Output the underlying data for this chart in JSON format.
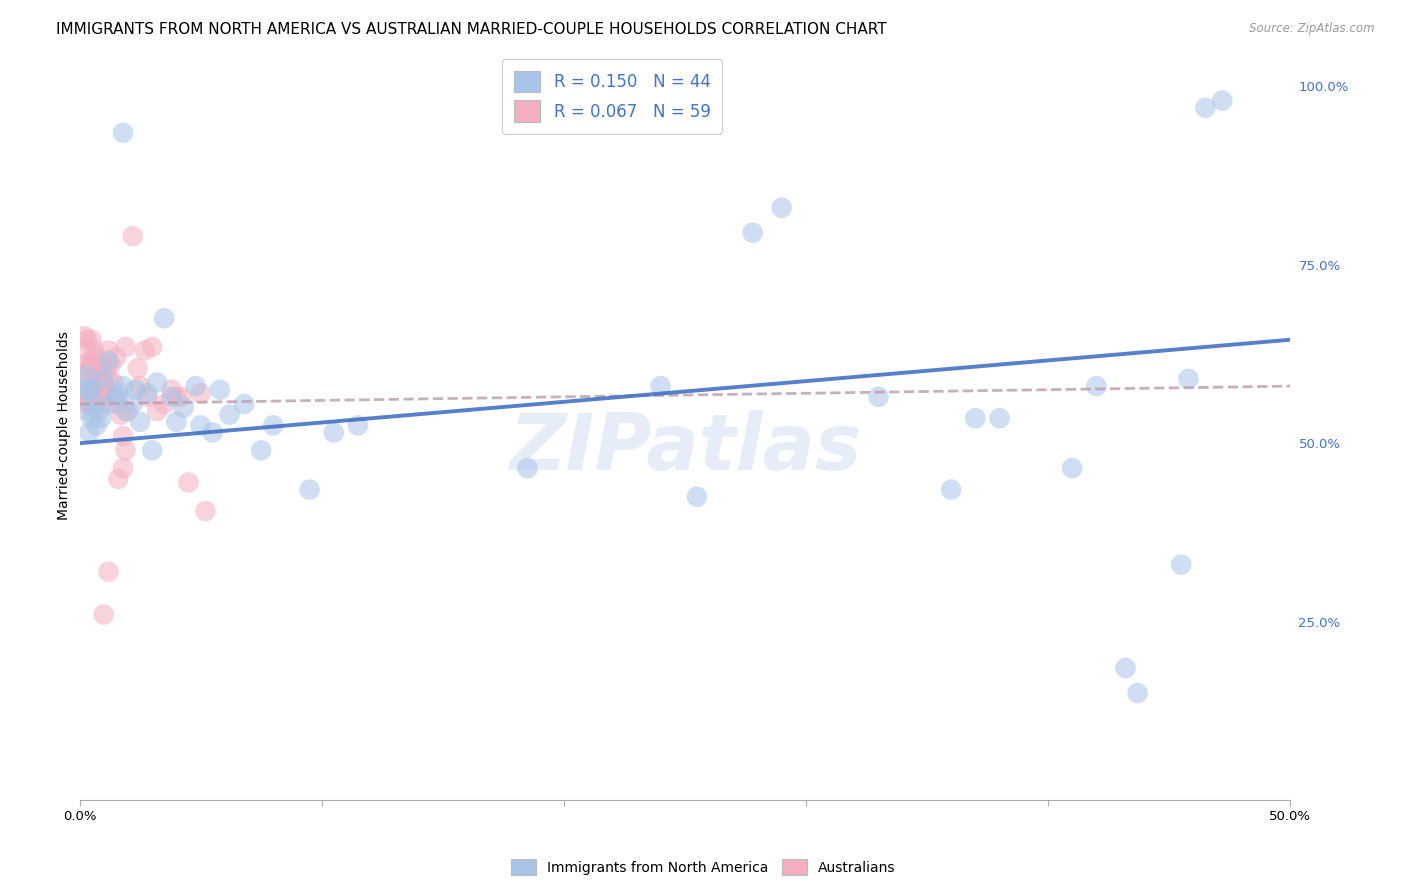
{
  "title": "IMMIGRANTS FROM NORTH AMERICA VS AUSTRALIAN MARRIED-COUPLE HOUSEHOLDS CORRELATION CHART",
  "source": "Source: ZipAtlas.com",
  "ylabel": "Married-couple Households",
  "xlim": [
    0.0,
    0.5
  ],
  "ylim": [
    0.0,
    1.05
  ],
  "x_ticks": [
    0.0,
    0.1,
    0.2,
    0.3,
    0.4,
    0.5
  ],
  "x_tick_labels": [
    "0.0%",
    "",
    "",
    "",
    "",
    "50.0%"
  ],
  "y_ticks_right": [
    0.25,
    0.5,
    0.75,
    1.0
  ],
  "y_tick_labels_right": [
    "25.0%",
    "50.0%",
    "75.0%",
    "100.0%"
  ],
  "blue_color": "#a8c4e8",
  "pink_color": "#f4afc0",
  "line_blue": "#4472c4",
  "line_pink_color": "#d08090",
  "watermark": "ZIPatlas",
  "blue_scatter": [
    [
      0.002,
      0.575
    ],
    [
      0.003,
      0.595
    ],
    [
      0.003,
      0.545
    ],
    [
      0.004,
      0.575
    ],
    [
      0.004,
      0.515
    ],
    [
      0.005,
      0.575
    ],
    [
      0.005,
      0.535
    ],
    [
      0.006,
      0.555
    ],
    [
      0.007,
      0.525
    ],
    [
      0.008,
      0.545
    ],
    [
      0.009,
      0.535
    ],
    [
      0.01,
      0.59
    ],
    [
      0.012,
      0.615
    ],
    [
      0.013,
      0.555
    ],
    [
      0.015,
      0.565
    ],
    [
      0.016,
      0.57
    ],
    [
      0.018,
      0.58
    ],
    [
      0.019,
      0.545
    ],
    [
      0.022,
      0.555
    ],
    [
      0.023,
      0.575
    ],
    [
      0.025,
      0.53
    ],
    [
      0.028,
      0.57
    ],
    [
      0.03,
      0.49
    ],
    [
      0.032,
      0.585
    ],
    [
      0.035,
      0.675
    ],
    [
      0.038,
      0.565
    ],
    [
      0.04,
      0.53
    ],
    [
      0.043,
      0.55
    ],
    [
      0.048,
      0.58
    ],
    [
      0.05,
      0.525
    ],
    [
      0.055,
      0.515
    ],
    [
      0.058,
      0.575
    ],
    [
      0.062,
      0.54
    ],
    [
      0.068,
      0.555
    ],
    [
      0.075,
      0.49
    ],
    [
      0.08,
      0.525
    ],
    [
      0.095,
      0.435
    ],
    [
      0.105,
      0.515
    ],
    [
      0.115,
      0.525
    ],
    [
      0.185,
      0.465
    ],
    [
      0.24,
      0.58
    ],
    [
      0.255,
      0.425
    ],
    [
      0.278,
      0.795
    ],
    [
      0.29,
      0.83
    ],
    [
      0.33,
      0.565
    ],
    [
      0.36,
      0.435
    ],
    [
      0.37,
      0.535
    ],
    [
      0.38,
      0.535
    ],
    [
      0.41,
      0.465
    ],
    [
      0.42,
      0.58
    ],
    [
      0.432,
      0.185
    ],
    [
      0.437,
      0.15
    ],
    [
      0.455,
      0.33
    ],
    [
      0.458,
      0.59
    ],
    [
      0.018,
      0.935
    ],
    [
      0.465,
      0.97
    ],
    [
      0.472,
      0.98
    ]
  ],
  "pink_scatter": [
    [
      0.001,
      0.565
    ],
    [
      0.002,
      0.61
    ],
    [
      0.002,
      0.65
    ],
    [
      0.002,
      0.57
    ],
    [
      0.003,
      0.645
    ],
    [
      0.003,
      0.6
    ],
    [
      0.003,
      0.63
    ],
    [
      0.004,
      0.605
    ],
    [
      0.004,
      0.585
    ],
    [
      0.004,
      0.555
    ],
    [
      0.005,
      0.645
    ],
    [
      0.005,
      0.615
    ],
    [
      0.005,
      0.565
    ],
    [
      0.006,
      0.58
    ],
    [
      0.006,
      0.55
    ],
    [
      0.006,
      0.63
    ],
    [
      0.007,
      0.62
    ],
    [
      0.007,
      0.59
    ],
    [
      0.007,
      0.565
    ],
    [
      0.008,
      0.605
    ],
    [
      0.008,
      0.57
    ],
    [
      0.009,
      0.61
    ],
    [
      0.009,
      0.565
    ],
    [
      0.01,
      0.585
    ],
    [
      0.01,
      0.555
    ],
    [
      0.011,
      0.605
    ],
    [
      0.011,
      0.575
    ],
    [
      0.012,
      0.63
    ],
    [
      0.012,
      0.59
    ],
    [
      0.013,
      0.61
    ],
    [
      0.014,
      0.585
    ],
    [
      0.014,
      0.565
    ],
    [
      0.015,
      0.62
    ],
    [
      0.016,
      0.555
    ],
    [
      0.017,
      0.54
    ],
    [
      0.018,
      0.51
    ],
    [
      0.019,
      0.49
    ],
    [
      0.019,
      0.635
    ],
    [
      0.02,
      0.545
    ],
    [
      0.022,
      0.79
    ],
    [
      0.024,
      0.605
    ],
    [
      0.025,
      0.58
    ],
    [
      0.027,
      0.63
    ],
    [
      0.028,
      0.565
    ],
    [
      0.03,
      0.635
    ],
    [
      0.032,
      0.545
    ],
    [
      0.035,
      0.555
    ],
    [
      0.038,
      0.575
    ],
    [
      0.04,
      0.565
    ],
    [
      0.042,
      0.565
    ],
    [
      0.045,
      0.445
    ],
    [
      0.05,
      0.57
    ],
    [
      0.052,
      0.405
    ],
    [
      0.01,
      0.26
    ],
    [
      0.012,
      0.32
    ],
    [
      0.016,
      0.45
    ],
    [
      0.018,
      0.465
    ],
    [
      0.003,
      0.555
    ],
    [
      0.005,
      0.555
    ]
  ],
  "blue_line_x": [
    0.0,
    0.5
  ],
  "blue_line_y": [
    0.5,
    0.645
  ],
  "pink_line_x": [
    0.0,
    0.5
  ],
  "pink_line_y": [
    0.555,
    0.58
  ],
  "background_color": "#ffffff",
  "grid_color": "#d8d8e4",
  "title_fontsize": 11,
  "axis_label_fontsize": 10,
  "tick_fontsize": 9.5,
  "watermark_color": "#c8d8f0",
  "watermark_fontsize": 56
}
